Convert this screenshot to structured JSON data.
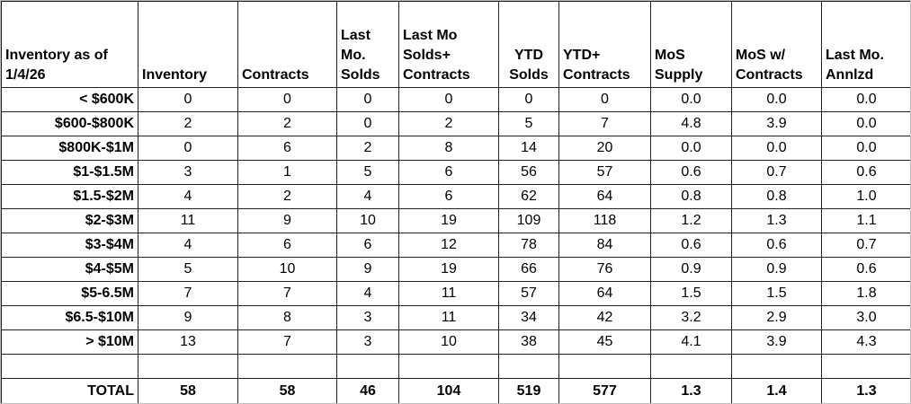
{
  "header": [
    [
      "Inventory as of",
      "1/4/26"
    ],
    [
      "Inventory"
    ],
    [
      "Contracts"
    ],
    [
      "Last",
      "Mo.",
      "Solds"
    ],
    [
      "Last Mo",
      "Solds+",
      "Contracts"
    ],
    [
      "YTD",
      "Solds"
    ],
    [
      "YTD+",
      "Contracts"
    ],
    [
      "MoS",
      "Supply"
    ],
    [
      "MoS w/",
      "Contracts"
    ],
    [
      "Last Mo.",
      "Annlzd"
    ]
  ],
  "rows": [
    {
      "label": "< $600K",
      "values": [
        "0",
        "0",
        "0",
        "0",
        "0",
        "0",
        "0.0",
        "0.0",
        "0.0"
      ]
    },
    {
      "label": "$600-$800K",
      "values": [
        "2",
        "2",
        "0",
        "2",
        "5",
        "7",
        "4.8",
        "3.9",
        "0.0"
      ]
    },
    {
      "label": "$800K-$1M",
      "values": [
        "0",
        "6",
        "2",
        "8",
        "14",
        "20",
        "0.0",
        "0.0",
        "0.0"
      ]
    },
    {
      "label": "$1-$1.5M",
      "values": [
        "3",
        "1",
        "5",
        "6",
        "56",
        "57",
        "0.6",
        "0.7",
        "0.6"
      ]
    },
    {
      "label": "$1.5-$2M",
      "values": [
        "4",
        "2",
        "4",
        "6",
        "62",
        "64",
        "0.8",
        "0.8",
        "1.0"
      ]
    },
    {
      "label": "$2-$3M",
      "values": [
        "11",
        "9",
        "10",
        "19",
        "109",
        "118",
        "1.2",
        "1.3",
        "1.1"
      ]
    },
    {
      "label": "$3-$4M",
      "values": [
        "4",
        "6",
        "6",
        "12",
        "78",
        "84",
        "0.6",
        "0.6",
        "0.7"
      ]
    },
    {
      "label": "$4-$5M",
      "values": [
        "5",
        "10",
        "9",
        "19",
        "66",
        "76",
        "0.9",
        "0.9",
        "0.6"
      ]
    },
    {
      "label": "$5-6.5M",
      "values": [
        "7",
        "7",
        "4",
        "11",
        "57",
        "64",
        "1.5",
        "1.5",
        "1.8"
      ]
    },
    {
      "label": "$6.5-$10M",
      "values": [
        "9",
        "8",
        "3",
        "11",
        "34",
        "42",
        "3.2",
        "2.9",
        "3.0"
      ]
    },
    {
      "label": "> $10M",
      "values": [
        "13",
        "7",
        "3",
        "10",
        "38",
        "45",
        "4.1",
        "3.9",
        "4.3"
      ]
    }
  ],
  "total": {
    "label": "TOTAL",
    "values": [
      "58",
      "58",
      "46",
      "104",
      "519",
      "577",
      "1.3",
      "1.4",
      "1.3"
    ]
  }
}
